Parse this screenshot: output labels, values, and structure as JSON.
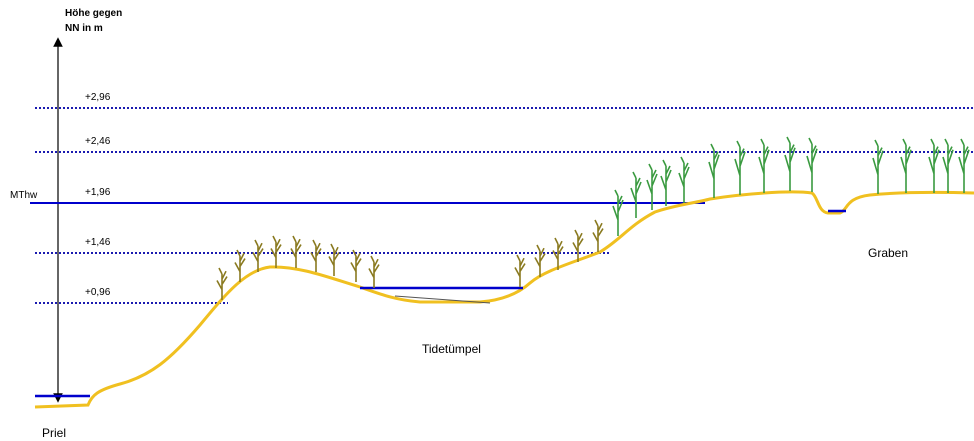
{
  "axis": {
    "title_lines": [
      "Höhe gegen",
      "NN in m"
    ]
  },
  "levels": [
    {
      "label": "+2,96"
    },
    {
      "label": "+2,46"
    },
    {
      "label": "+1,96",
      "name": "MThw"
    },
    {
      "label": "+1,46"
    },
    {
      "label": "+0,96"
    }
  ],
  "features": {
    "graben": "Graben",
    "tidetuempel": "Tidetümpel",
    "priel": "Priel"
  }
}
